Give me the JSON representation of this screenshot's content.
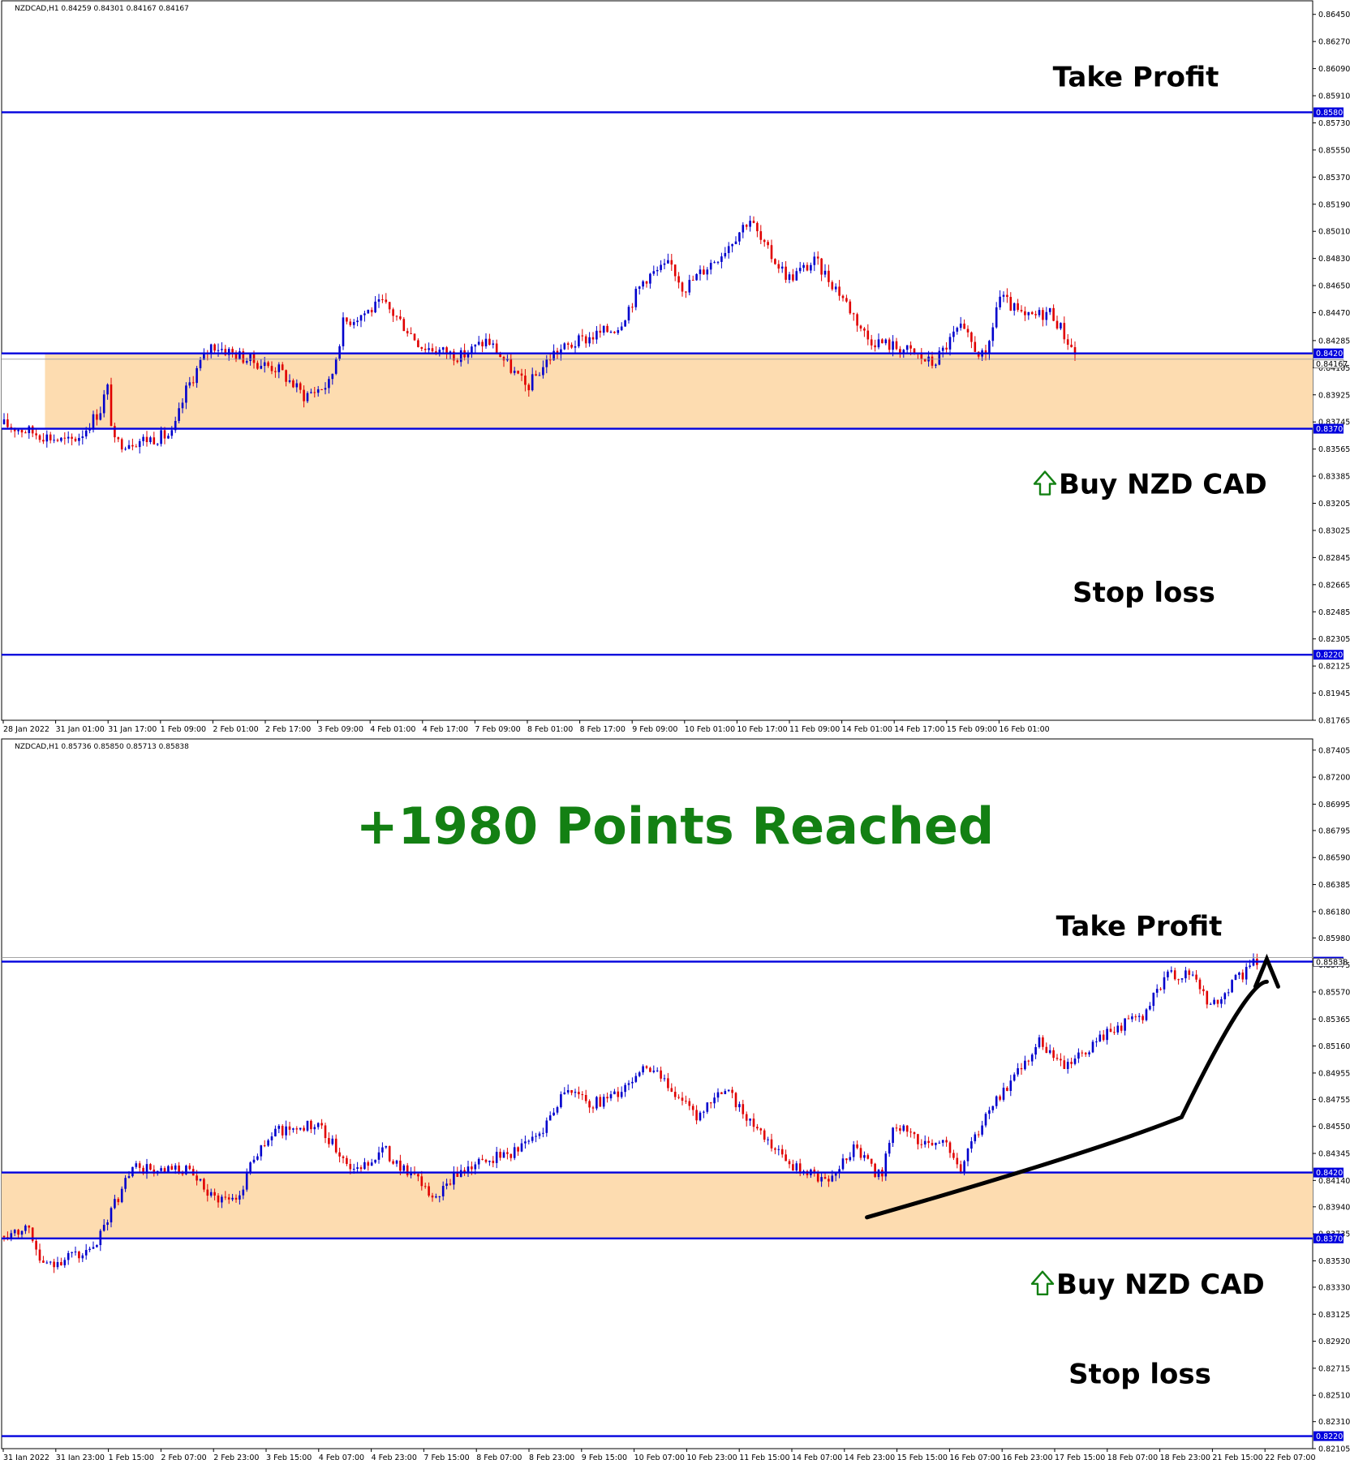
{
  "chart_data": [
    {
      "type": "candlestick",
      "symbol_header": "NZDCAD,H1  0.84259 0.84301 0.84167 0.84167",
      "ylim": [
        0.81765,
        0.8654
      ],
      "yticks": [
        "0.86450",
        "0.86270",
        "0.86090",
        "0.85910",
        "0.85730",
        "0.85550",
        "0.85370",
        "0.85190",
        "0.85010",
        "0.84830",
        "0.84650",
        "0.84470",
        "0.84285",
        "0.84105",
        "0.83925",
        "0.83745",
        "0.83565",
        "0.83385",
        "0.83205",
        "0.83025",
        "0.82845",
        "0.82665",
        "0.82485",
        "0.82305",
        "0.82125",
        "0.81945",
        "0.81765"
      ],
      "ytick_values": [
        0.8645,
        0.8627,
        0.8609,
        0.8591,
        0.8573,
        0.8555,
        0.8537,
        0.8519,
        0.8501,
        0.8483,
        0.8465,
        0.8447,
        0.84285,
        0.84105,
        0.83925,
        0.83745,
        0.83565,
        0.83385,
        0.83205,
        0.83025,
        0.82845,
        0.82665,
        0.82485,
        0.82305,
        0.82125,
        0.81945,
        0.81765
      ],
      "xticks": [
        "28 Jan 2022",
        "31 Jan 01:00",
        "31 Jan 17:00",
        "1 Feb 09:00",
        "2 Feb 01:00",
        "2 Feb 17:00",
        "3 Feb 09:00",
        "4 Feb 01:00",
        "4 Feb 17:00",
        "7 Feb 09:00",
        "8 Feb 01:00",
        "8 Feb 17:00",
        "9 Feb 09:00",
        "10 Feb 01:00",
        "10 Feb 17:00",
        "11 Feb 09:00",
        "14 Feb 01:00",
        "14 Feb 17:00",
        "15 Feb 09:00",
        "16 Feb 01:00"
      ],
      "levels": [
        {
          "price": 0.858,
          "tag": "0.85800",
          "label": "Take Profit"
        },
        {
          "price": 0.842,
          "tag": "0.84200"
        },
        {
          "price": 0.837,
          "tag": "0.83700"
        },
        {
          "price": 0.822,
          "tag": "0.82200",
          "label": "Stop loss"
        }
      ],
      "current_price_tag": "0.84167",
      "zone": [
        0.837,
        0.842
      ],
      "buy_label": "Buy NZD CAD",
      "path": [
        [
          0.0,
          0.8373
        ],
        [
          0.03,
          0.8366
        ],
        [
          0.05,
          0.8361
        ],
        [
          0.06,
          0.8366
        ],
        [
          0.075,
          0.8383
        ],
        [
          0.08,
          0.8399
        ],
        [
          0.085,
          0.836
        ],
        [
          0.11,
          0.8363
        ],
        [
          0.13,
          0.8366
        ],
        [
          0.14,
          0.8395
        ],
        [
          0.15,
          0.8412
        ],
        [
          0.16,
          0.8426
        ],
        [
          0.19,
          0.8415
        ],
        [
          0.21,
          0.841
        ],
        [
          0.23,
          0.8392
        ],
        [
          0.25,
          0.84
        ],
        [
          0.26,
          0.844
        ],
        [
          0.29,
          0.8453
        ],
        [
          0.3,
          0.8445
        ],
        [
          0.32,
          0.8425
        ],
        [
          0.35,
          0.8418
        ],
        [
          0.37,
          0.8429
        ],
        [
          0.4,
          0.8397
        ],
        [
          0.42,
          0.842
        ],
        [
          0.44,
          0.8428
        ],
        [
          0.47,
          0.8438
        ],
        [
          0.49,
          0.847
        ],
        [
          0.51,
          0.8479
        ],
        [
          0.52,
          0.8463
        ],
        [
          0.55,
          0.8488
        ],
        [
          0.57,
          0.851
        ],
        [
          0.58,
          0.8492
        ],
        [
          0.6,
          0.847
        ],
        [
          0.62,
          0.8481
        ],
        [
          0.64,
          0.8459
        ],
        [
          0.66,
          0.843
        ],
        [
          0.69,
          0.8422
        ],
        [
          0.71,
          0.8413
        ],
        [
          0.73,
          0.8437
        ],
        [
          0.75,
          0.8415
        ],
        [
          0.76,
          0.8458
        ],
        [
          0.78,
          0.8443
        ],
        [
          0.8,
          0.8448
        ],
        [
          0.82,
          0.8417
        ]
      ],
      "candle_extent": 0.82
    },
    {
      "type": "candlestick",
      "symbol_header": "NZDCAD,H1  0.85736 0.85850 0.85713 0.85838",
      "headline": "+1980 Points Reached",
      "ylim": [
        0.82105,
        0.8749
      ],
      "yticks": [
        "0.87405",
        "0.87200",
        "0.86995",
        "0.86795",
        "0.86590",
        "0.86385",
        "0.86180",
        "0.85980",
        "0.85775",
        "0.85570",
        "0.85365",
        "0.85160",
        "0.84955",
        "0.84755",
        "0.84550",
        "0.84345",
        "0.84140",
        "0.83940",
        "0.83735",
        "0.83530",
        "0.83330",
        "0.83125",
        "0.82920",
        "0.82715",
        "0.82510",
        "0.82310",
        "0.82105"
      ],
      "ytick_values": [
        0.87405,
        0.872,
        0.86995,
        0.86795,
        0.8659,
        0.86385,
        0.8618,
        0.8598,
        0.85775,
        0.8557,
        0.85365,
        0.8516,
        0.84955,
        0.84755,
        0.8455,
        0.84345,
        0.8414,
        0.8394,
        0.83735,
        0.8353,
        0.8333,
        0.83125,
        0.8292,
        0.82715,
        0.8251,
        0.8231,
        0.82105
      ],
      "xticks": [
        "31 Jan 2022",
        "31 Jan 23:00",
        "1 Feb 15:00",
        "2 Feb 07:00",
        "2 Feb 23:00",
        "3 Feb 15:00",
        "4 Feb 07:00",
        "4 Feb 23:00",
        "7 Feb 15:00",
        "8 Feb 07:00",
        "8 Feb 23:00",
        "9 Feb 15:00",
        "10 Feb 07:00",
        "10 Feb 23:00",
        "11 Feb 15:00",
        "14 Feb 07:00",
        "14 Feb 23:00",
        "15 Feb 15:00",
        "16 Feb 07:00",
        "16 Feb 23:00",
        "17 Feb 15:00",
        "18 Feb 07:00",
        "18 Feb 23:00",
        "21 Feb 15:00",
        "22 Feb 07:00"
      ],
      "levels": [
        {
          "price": 0.858,
          "tag": "0.85800",
          "label": "Take Profit"
        },
        {
          "price": 0.842,
          "tag": "0.84200"
        },
        {
          "price": 0.837,
          "tag": "0.83700"
        },
        {
          "price": 0.822,
          "tag": "0.82200",
          "label": "Stop loss"
        }
      ],
      "current_price_tag": "0.85838",
      "zone": [
        0.837,
        0.842
      ],
      "buy_label": "Buy NZD CAD",
      "path": [
        [
          0.0,
          0.8372
        ],
        [
          0.02,
          0.838
        ],
        [
          0.03,
          0.8348
        ],
        [
          0.05,
          0.8356
        ],
        [
          0.07,
          0.836
        ],
        [
          0.08,
          0.8385
        ],
        [
          0.1,
          0.8425
        ],
        [
          0.12,
          0.842
        ],
        [
          0.14,
          0.8422
        ],
        [
          0.16,
          0.8402
        ],
        [
          0.18,
          0.84
        ],
        [
          0.19,
          0.843
        ],
        [
          0.21,
          0.8452
        ],
        [
          0.24,
          0.8456
        ],
        [
          0.27,
          0.842
        ],
        [
          0.29,
          0.8438
        ],
        [
          0.31,
          0.842
        ],
        [
          0.33,
          0.84
        ],
        [
          0.35,
          0.8422
        ],
        [
          0.37,
          0.843
        ],
        [
          0.39,
          0.8436
        ],
        [
          0.41,
          0.845
        ],
        [
          0.43,
          0.8485
        ],
        [
          0.45,
          0.8472
        ],
        [
          0.47,
          0.848
        ],
        [
          0.49,
          0.8501
        ],
        [
          0.51,
          0.8485
        ],
        [
          0.53,
          0.846
        ],
        [
          0.55,
          0.8485
        ],
        [
          0.57,
          0.846
        ],
        [
          0.59,
          0.8435
        ],
        [
          0.61,
          0.842
        ],
        [
          0.63,
          0.8415
        ],
        [
          0.65,
          0.844
        ],
        [
          0.67,
          0.8416
        ],
        [
          0.68,
          0.8458
        ],
        [
          0.7,
          0.8442
        ],
        [
          0.72,
          0.8445
        ],
        [
          0.73,
          0.842
        ],
        [
          0.75,
          0.8465
        ],
        [
          0.77,
          0.8488
        ],
        [
          0.79,
          0.852
        ],
        [
          0.81,
          0.85
        ],
        [
          0.83,
          0.8515
        ],
        [
          0.85,
          0.853
        ],
        [
          0.87,
          0.854
        ],
        [
          0.89,
          0.857
        ],
        [
          0.91,
          0.8572
        ],
        [
          0.92,
          0.8545
        ],
        [
          0.94,
          0.8565
        ],
        [
          0.96,
          0.8583
        ]
      ],
      "candle_extent": 0.96,
      "arrow": [
        [
          0.66,
          0.8386
        ],
        [
          0.83,
          0.8422
        ],
        [
          0.9,
          0.8462
        ],
        [
          0.95,
          0.854
        ],
        [
          0.965,
          0.8582
        ]
      ]
    }
  ]
}
